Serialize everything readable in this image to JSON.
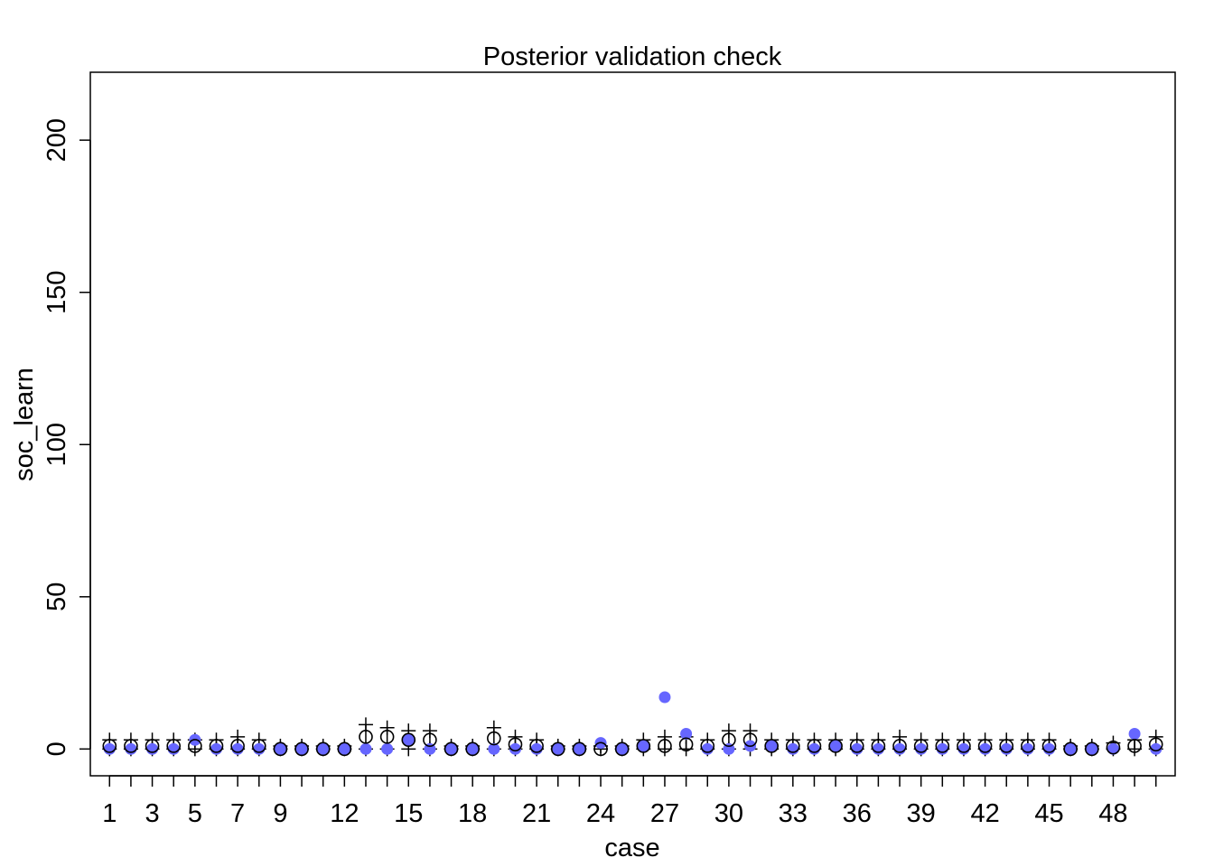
{
  "chart_data": {
    "type": "scatter",
    "title": "Posterior validation check",
    "xlabel": "case",
    "ylabel": "soc_learn",
    "xlim": [
      0.1,
      50.9
    ],
    "ylim": [
      -8.8,
      222.3
    ],
    "x_ticks": [
      1,
      3,
      5,
      7,
      9,
      12,
      15,
      18,
      21,
      24,
      27,
      30,
      33,
      36,
      39,
      42,
      45,
      48
    ],
    "y_ticks": [
      0,
      50,
      100,
      150,
      200
    ],
    "grid": false,
    "legend": "none",
    "colors": {
      "observed": "#6666ff",
      "mean": "#000000",
      "interval": "#000000"
    },
    "observed": [
      0,
      0,
      0,
      0,
      3,
      0,
      0,
      0,
      0,
      0,
      0,
      0,
      0,
      0,
      3,
      0,
      0,
      0,
      0,
      0,
      0,
      0,
      0,
      2,
      0,
      1,
      17,
      5,
      0,
      0,
      1,
      1,
      0,
      0,
      1,
      0,
      0,
      0,
      0,
      0,
      0,
      0,
      0,
      0,
      0,
      0,
      0,
      0,
      5,
      0
    ],
    "mean": [
      1,
      1,
      1,
      1,
      1,
      1,
      1,
      1,
      0,
      0,
      0,
      0,
      4,
      4,
      3,
      3,
      0,
      0,
      3.5,
      1.5,
      1,
      0,
      0,
      0,
      0,
      1,
      1,
      1.5,
      1,
      3,
      3,
      1,
      1,
      1,
      1,
      1,
      1,
      1,
      1,
      1,
      1,
      1,
      1,
      1,
      1,
      0,
      0,
      0.5,
      1,
      1.5
    ],
    "lower": [
      0,
      0,
      0,
      0,
      0,
      0,
      0,
      0,
      0,
      0,
      0,
      0,
      0,
      0,
      0,
      0,
      0,
      0,
      0,
      0,
      0,
      0,
      0,
      0,
      0,
      0,
      0,
      0,
      0,
      0,
      0,
      0,
      0,
      0,
      0,
      0,
      0,
      0,
      0,
      0,
      0,
      0,
      0,
      0,
      0,
      0,
      0,
      0,
      0,
      0
    ],
    "upper": [
      3,
      3,
      3,
      3,
      3,
      3,
      4,
      3,
      1,
      1,
      1,
      1,
      8,
      7,
      6,
      6,
      1,
      1,
      7,
      4,
      3,
      1,
      1,
      1,
      1,
      3,
      4,
      4,
      3,
      6,
      6,
      3,
      3,
      3,
      3,
      3,
      3,
      4,
      3,
      3,
      3,
      3,
      3,
      3,
      3,
      1,
      1,
      2,
      3,
      4
    ]
  }
}
